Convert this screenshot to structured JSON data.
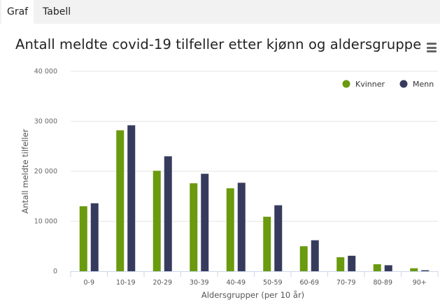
{
  "tabs": [
    {
      "label": "Graf",
      "active": true
    },
    {
      "label": "Tabell",
      "active": false
    }
  ],
  "chart": {
    "title": "Antall meldte covid-19 tilfeller etter kjønn og aldersgruppe",
    "menu_icon": "hamburger-menu-icon"
  },
  "chart_data": {
    "type": "bar",
    "title": "Antall meldte covid-19 tilfeller etter kjønn og aldersgruppe",
    "xlabel": "Aldersgrupper (per 10 år)",
    "ylabel": "Antall meldte tilfeller",
    "ylim": [
      0,
      40000
    ],
    "yticks": [
      0,
      10000,
      20000,
      30000,
      40000
    ],
    "ytick_labels": [
      "0",
      "10 000",
      "20 000",
      "30 000",
      "40 000"
    ],
    "categories": [
      "0-9",
      "10-19",
      "20-29",
      "30-39",
      "40-49",
      "50-59",
      "60-69",
      "70-79",
      "80-89",
      "90+"
    ],
    "series": [
      {
        "name": "Kvinner",
        "color": "#6a9a0e",
        "values": [
          13000,
          28200,
          20100,
          17600,
          16600,
          10900,
          5000,
          2800,
          1400,
          600
        ]
      },
      {
        "name": "Menn",
        "color": "#363b5e",
        "values": [
          13600,
          29200,
          23000,
          19500,
          17700,
          13200,
          6200,
          3100,
          1200,
          200
        ]
      }
    ],
    "legend_position": "top-right",
    "grid": true
  }
}
